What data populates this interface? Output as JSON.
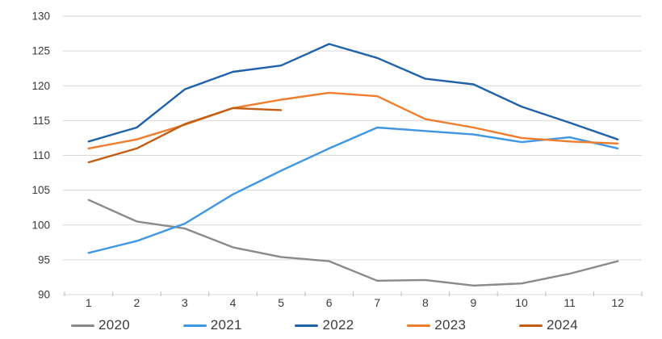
{
  "chart_data": {
    "type": "line",
    "title": "",
    "xlabel": "",
    "ylabel": "",
    "x": [
      1,
      2,
      3,
      4,
      5,
      6,
      7,
      8,
      9,
      10,
      11,
      12
    ],
    "x_tick_labels": [
      "1",
      "2",
      "3",
      "4",
      "5",
      "6",
      "7",
      "8",
      "9",
      "10",
      "11",
      "12"
    ],
    "ylim": [
      90,
      130
    ],
    "yticks": [
      90,
      95,
      100,
      105,
      110,
      115,
      120,
      125,
      130
    ],
    "grid": "horizontal",
    "legend_position": "bottom",
    "series": [
      {
        "name": "2020",
        "color": "#8a8a8a",
        "values": [
          103.6,
          100.5,
          99.5,
          96.8,
          95.4,
          94.8,
          92.0,
          92.1,
          91.3,
          91.6,
          93.0,
          94.8
        ]
      },
      {
        "name": "2021",
        "color": "#3f97e3",
        "values": [
          96.0,
          97.7,
          100.2,
          104.4,
          107.8,
          111.0,
          114.0,
          113.5,
          113.0,
          111.9,
          112.6,
          111.0
        ]
      },
      {
        "name": "2022",
        "color": "#2062a9",
        "values": [
          112.0,
          114.0,
          119.5,
          122.0,
          122.9,
          126.0,
          124.0,
          121.0,
          120.2,
          117.0,
          114.7,
          112.3
        ]
      },
      {
        "name": "2023",
        "color": "#ef7d2d",
        "values": [
          111.0,
          112.3,
          114.4,
          116.8,
          118.0,
          119.0,
          118.5,
          115.2,
          114.0,
          112.5,
          112.0,
          111.7
        ]
      },
      {
        "name": "2024",
        "color": "#c55c13",
        "values": [
          109.0,
          111.0,
          114.5,
          116.8,
          116.5
        ]
      }
    ],
    "colors": {
      "gridline": "#d9d9d9",
      "tick": "#bdbdbd",
      "axis_label": "#3a3a3a"
    }
  }
}
